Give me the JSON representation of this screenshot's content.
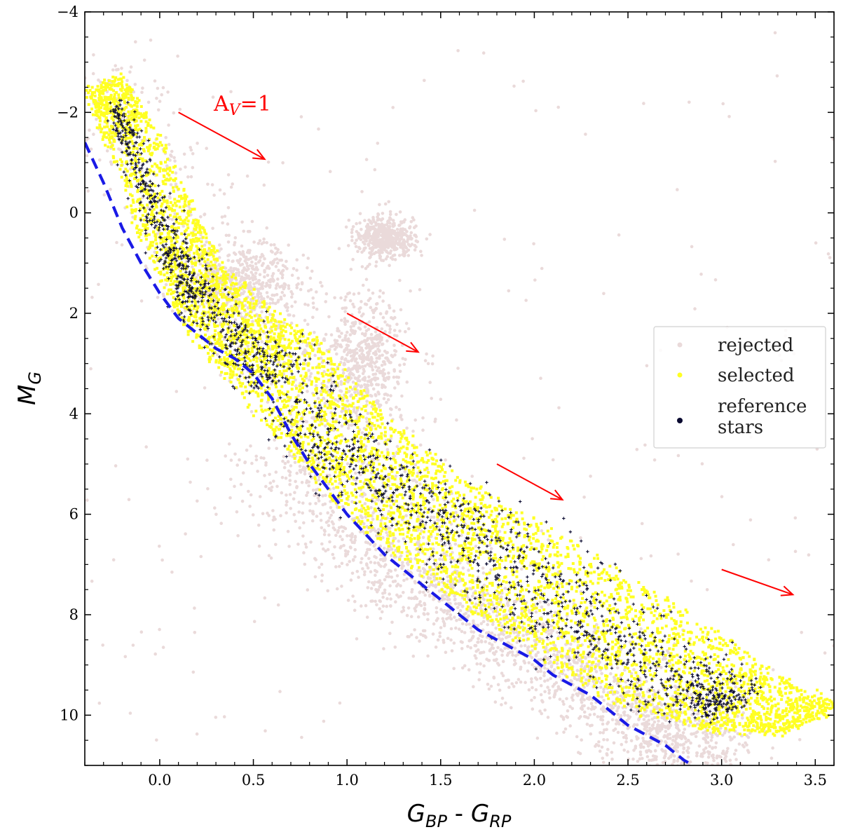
{
  "chart_data": {
    "type": "scatter",
    "title": "",
    "xlabel": "G_BP - G_RP",
    "xlabel_parts": {
      "main1": "G",
      "sub1": "BP",
      "sep": " - ",
      "main2": "G",
      "sub2": "RP"
    },
    "ylabel": "M_G",
    "ylabel_parts": {
      "main": "M",
      "sub": "G"
    },
    "xlim": [
      -0.4,
      3.6
    ],
    "ylim": [
      11,
      -4
    ],
    "y_inverted": true,
    "xticks": [
      0.0,
      0.5,
      1.0,
      1.5,
      2.0,
      2.5,
      3.0,
      3.5
    ],
    "xtick_labels": [
      "0.0",
      "0.5",
      "1.0",
      "1.5",
      "2.0",
      "2.5",
      "3.0",
      "3.5"
    ],
    "yticks": [
      -4,
      -2,
      0,
      2,
      4,
      6,
      8,
      10
    ],
    "ytick_labels": [
      "−4",
      "−2",
      "0",
      "2",
      "4",
      "6",
      "8",
      "10"
    ],
    "grid": false,
    "legend": {
      "placement": "center-right",
      "entries": [
        {
          "label": "rejected",
          "color": "#eadada"
        },
        {
          "label": "selected",
          "color": "#ffff22"
        },
        {
          "label": "reference\nstars",
          "color": "#0a0a30"
        }
      ]
    },
    "series": [
      {
        "name": "rejected",
        "color": "#eadada",
        "description": "scattered field stars including red clump and lower main sequence",
        "bands": [
          {
            "x": [
              -0.35,
              0.3,
              0.9,
              1.4,
              2.0,
              2.6,
              2.9
            ],
            "y": [
              -3.0,
              1.2,
              3.6,
              6.6,
              8.6,
              10.0,
              10.8
            ],
            "width": 0.45
          },
          {
            "x": [
              0.6,
              1.0,
              1.4,
              1.8,
              2.2,
              2.6,
              2.9
            ],
            "y": [
              4.8,
              6.4,
              7.6,
              8.4,
              9.3,
              10.1,
              10.9
            ],
            "width": 0.4
          }
        ],
        "clusters": [
          {
            "x": 0.45,
            "y": 1.4,
            "sx": 0.15,
            "sy": 0.35
          },
          {
            "x": 1.2,
            "y": 0.5,
            "sx": 0.08,
            "sy": 0.2
          },
          {
            "x": 1.1,
            "y": 2.8,
            "sx": 0.1,
            "sy": 0.6
          }
        ]
      },
      {
        "name": "selected",
        "color": "#ffff22",
        "description": "main-sequence band stars",
        "ridge": {
          "x": [
            -0.3,
            -0.15,
            0.05,
            0.2,
            0.4,
            0.6,
            0.85,
            1.1,
            1.4,
            1.7,
            2.0,
            2.3,
            2.6,
            2.9,
            3.2,
            3.5
          ],
          "y": [
            -2.6,
            -1.5,
            0.3,
            1.4,
            2.3,
            2.9,
            4.0,
            5.0,
            5.9,
            6.6,
            7.4,
            8.1,
            8.8,
            9.5,
            9.9,
            10.1
          ],
          "width": [
            0.14,
            0.18,
            0.22,
            0.22,
            0.3,
            0.34,
            0.36,
            0.38,
            0.42,
            0.46,
            0.5,
            0.5,
            0.5,
            0.46,
            0.36,
            0.26
          ]
        }
      },
      {
        "name": "reference stars",
        "color": "#0a0a30",
        "marker": "plus",
        "description": "reference stars along main sequence ridge",
        "ridge": {
          "x": [
            -0.25,
            -0.1,
            0.05,
            0.2,
            0.45,
            0.65,
            0.9,
            1.2,
            1.5,
            1.8,
            2.1,
            2.4,
            2.7,
            2.9,
            3.1
          ],
          "y": [
            -2.2,
            -0.8,
            0.7,
            1.6,
            2.6,
            3.3,
            4.6,
            5.4,
            6.1,
            6.9,
            7.7,
            8.4,
            9.2,
            9.6,
            9.8
          ],
          "width": [
            0.04,
            0.06,
            0.08,
            0.1,
            0.12,
            0.14,
            0.16,
            0.18,
            0.2,
            0.22,
            0.22,
            0.22,
            0.2,
            0.16,
            0.12
          ]
        }
      },
      {
        "name": "boundary",
        "color": "#1a1ae6",
        "type": "line",
        "style": "dashed",
        "x": [
          -0.4,
          -0.3,
          -0.2,
          -0.1,
          0.0,
          0.1,
          0.2,
          0.3,
          0.4,
          0.5,
          0.6,
          0.7,
          0.8,
          0.9,
          1.0,
          1.1,
          1.2,
          1.3,
          1.4,
          1.5,
          1.6,
          1.7,
          1.8,
          1.9,
          2.0,
          2.1,
          2.2,
          2.3,
          2.4,
          2.5,
          2.6,
          2.7,
          2.8,
          2.85
        ],
        "y": [
          -1.4,
          -0.6,
          0.3,
          1.0,
          1.6,
          2.1,
          2.4,
          2.7,
          2.9,
          3.2,
          3.7,
          4.4,
          5.0,
          5.5,
          6.0,
          6.4,
          6.8,
          7.1,
          7.4,
          7.7,
          8.0,
          8.3,
          8.5,
          8.7,
          8.9,
          9.2,
          9.4,
          9.6,
          9.9,
          10.2,
          10.4,
          10.6,
          10.9,
          11.0
        ]
      }
    ],
    "annotations": [
      {
        "text_main": "A",
        "text_sub": "V",
        "text_rest": "=1",
        "x": 0.3,
        "y": -2.0
      }
    ],
    "arrows": [
      {
        "x0": 0.1,
        "y0": -2.0,
        "x1": 0.56,
        "y1": -1.07,
        "color": "#ff0000"
      },
      {
        "x0": 1.0,
        "y0": 2.0,
        "x1": 1.38,
        "y1": 2.77,
        "color": "#ff0000"
      },
      {
        "x0": 1.8,
        "y0": 5.0,
        "x1": 2.15,
        "y1": 5.71,
        "color": "#ff0000"
      },
      {
        "x0": 3.0,
        "y0": 7.1,
        "x1": 3.38,
        "y1": 7.6,
        "color": "#ff0000"
      }
    ]
  }
}
